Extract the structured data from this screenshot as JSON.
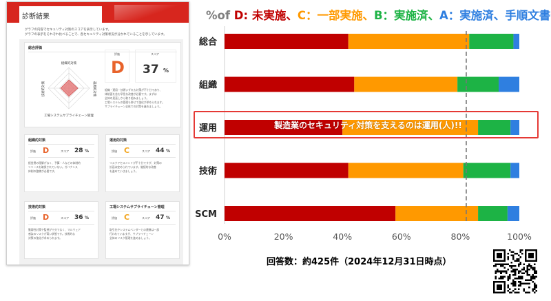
{
  "report": {
    "header_title": "診断結果",
    "intro_lines": [
      "グラフの内容でセキュリティ対策のスコアを表示しています。",
      "グラフの表示をそれぞれ比べることで、各セキュリティ対策状況が分かれていることを示しています。"
    ],
    "overall": {
      "title": "総合評価",
      "radar_labels": {
        "top": "組織的対策",
        "right": "運用的対策",
        "bottom": "工場システムサプライチェーン管理",
        "left": "技術的対策"
      },
      "grade_label": "評価",
      "grade": "D",
      "score_label": "スコア",
      "score": "37",
      "unit": "%",
      "desc_lines": [
        "組織・運用・技術いずれも対策が不十分であり、",
        "体制面を含む早急な改善が必要です。まずは",
        "全体の見直しから取り組みましょう。",
        "工場システムの管理も併せて強化が求められます。",
        "サプライチェーン全体での対策を進めましょう。"
      ]
    },
    "cards": [
      {
        "id": "org",
        "title": "組織的対策",
        "grade": "D",
        "score": "28",
        "grade_color": "#e8632b",
        "desc_lines": [
          "経営層の理解がなく、予算・人などの体制的",
          "リソースを確保されていない。ガバナンス",
          "体制の整備が必要です。"
        ]
      },
      {
        "id": "ops",
        "title": "運用的対策",
        "grade": "C",
        "score": "44",
        "grade_color": "#f2a51f",
        "desc_lines": [
          "リスクアセスメントが不十分ですが、対策の",
          "計画は定められています。継続的な改善",
          "を進めていきましょう。"
        ]
      },
      {
        "id": "tech",
        "title": "技術的対策",
        "grade": "D",
        "score": "36",
        "grade_color": "#e8632b",
        "desc_lines": [
          "脆弱性対策や監視が十分でなく、マルウェア",
          "感染のリスクが高い状態です。技術的な",
          "対策の強化が求められます。"
        ]
      },
      {
        "id": "scm",
        "title": "工場システムサプライチェーン管理",
        "grade": "C",
        "score": "47",
        "grade_color": "#f2a51f",
        "desc_lines": [
          "取引先やシステムベンダーとの連携は一部",
          "行われていますが、サプライチェーン",
          "全体のリスク管理を進めましょう。"
        ]
      }
    ],
    "card_grade_label": "評価",
    "card_score_label": "スコア",
    "unit": "%"
  },
  "chart_title": {
    "prefix": "%of ",
    "d": "D: 未実施、",
    "c": "C：一部実施、",
    "b": "B：実施済、",
    "a": "A：実施済、手順文書化"
  },
  "colors": {
    "D": "#c00000",
    "C": "#ff9900",
    "B": "#1db345",
    "A": "#2f7fe0",
    "title_grey": "#7f7f7f",
    "highlight": "#e53935"
  },
  "chart_data": {
    "type": "bar",
    "orientation": "horizontal",
    "stacked": true,
    "categories": [
      "総合",
      "組織",
      "運用",
      "技術",
      "SCM"
    ],
    "series": [
      {
        "name": "D",
        "values": [
          42,
          44,
          40,
          42,
          58
        ]
      },
      {
        "name": "C",
        "values": [
          41,
          35,
          46,
          39,
          28
        ]
      },
      {
        "name": "B",
        "values": [
          15,
          14,
          11,
          16,
          10
        ]
      },
      {
        "name": "A",
        "values": [
          2,
          7,
          3,
          3,
          4
        ]
      }
    ],
    "xlim": [
      0,
      100
    ],
    "xticks": [
      "0%",
      "20%",
      "40%",
      "60%",
      "80%",
      "100%"
    ],
    "reference_line": 82,
    "annotation": "製造業のセキュリティ対策を支えるのは運用(人)!!",
    "highlight_category": "運用"
  },
  "footnote": "回答数：約425件（2024年12月31日時点）"
}
